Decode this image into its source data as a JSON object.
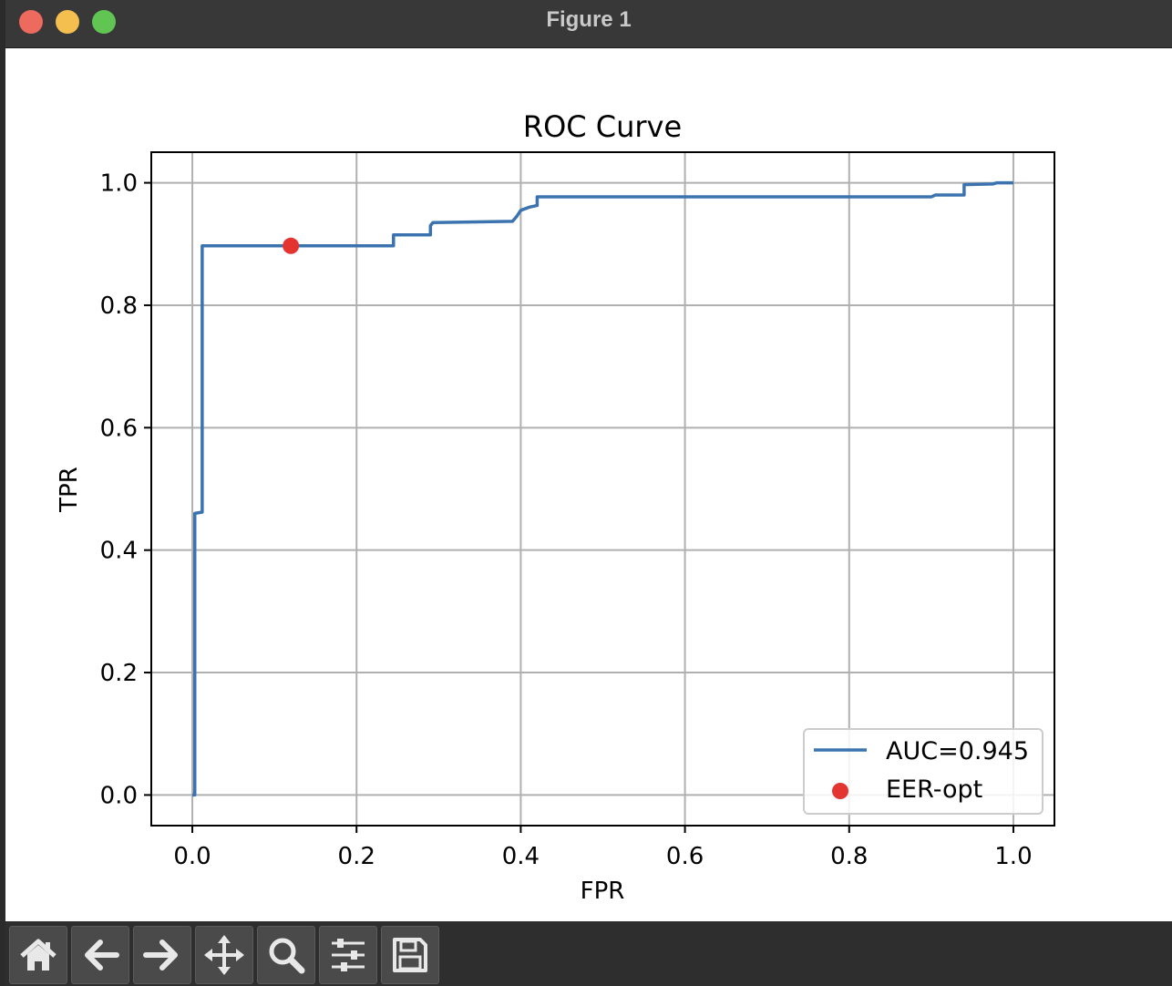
{
  "window": {
    "title": "Figure 1"
  },
  "toolbar": {
    "buttons": [
      {
        "name": "home-icon"
      },
      {
        "name": "back-arrow-icon"
      },
      {
        "name": "forward-arrow-icon"
      },
      {
        "name": "pan-move-icon"
      },
      {
        "name": "zoom-magnifier-icon"
      },
      {
        "name": "configure-subplots-icon"
      },
      {
        "name": "save-floppy-icon"
      }
    ]
  },
  "chart_data": {
    "type": "line",
    "title": "ROC Curve",
    "xlabel": "FPR",
    "ylabel": "TPR",
    "xlim": [
      -0.05,
      1.05
    ],
    "ylim": [
      -0.05,
      1.05
    ],
    "xticks": [
      "0.0",
      "0.2",
      "0.4",
      "0.6",
      "0.8",
      "1.0"
    ],
    "yticks": [
      "0.0",
      "0.2",
      "0.4",
      "0.6",
      "0.8",
      "1.0"
    ],
    "grid": true,
    "legend_position": "lower-right",
    "series": [
      {
        "name": "AUC=0.945",
        "kind": "line",
        "color": "#3b73af",
        "x": [
          0.0,
          0.003,
          0.003,
          0.012,
          0.012,
          0.245,
          0.245,
          0.29,
          0.29,
          0.293,
          0.39,
          0.395,
          0.4,
          0.41,
          0.42,
          0.42,
          0.9,
          0.905,
          0.94,
          0.94,
          0.975,
          0.98,
          1.0
        ],
        "y": [
          0.0,
          0.0,
          0.46,
          0.462,
          0.897,
          0.897,
          0.915,
          0.915,
          0.93,
          0.935,
          0.937,
          0.945,
          0.955,
          0.96,
          0.963,
          0.977,
          0.977,
          0.98,
          0.98,
          0.997,
          0.998,
          1.0,
          1.0
        ]
      },
      {
        "name": "EER-opt",
        "kind": "scatter",
        "color": "#e3342f",
        "x": [
          0.12
        ],
        "y": [
          0.897
        ]
      }
    ]
  }
}
